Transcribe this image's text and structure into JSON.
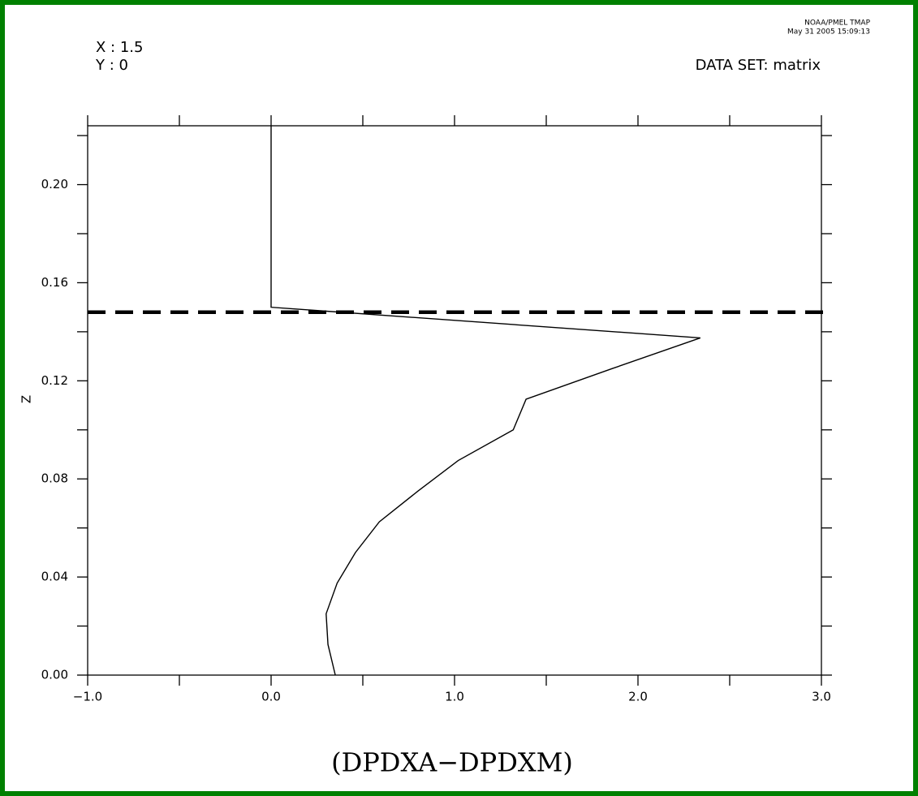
{
  "chart_data": {
    "type": "line",
    "orientation": "vertical-profile",
    "annotations": [
      "X : 1.5",
      "Y : 0"
    ],
    "credit": [
      "NOAA/PMEL TMAP",
      "May 31 2005 15:09:13"
    ],
    "dataset_label": "DATA SET: matrix",
    "xlabel": "(DPDXA−DPDXM)",
    "ylabel": "Z",
    "x": [
      0.0,
      0.0,
      2.34,
      1.86,
      1.39,
      1.32,
      1.02,
      0.8,
      0.59,
      0.46,
      0.36,
      0.3,
      0.31,
      0.35
    ],
    "y": [
      0.224,
      0.15,
      0.1375,
      0.125,
      0.1125,
      0.1,
      0.0875,
      0.075,
      0.0625,
      0.05,
      0.0375,
      0.025,
      0.0125,
      0.0
    ],
    "color": "#000000",
    "hline": 0.148,
    "hline_color": "#000000",
    "xlim": [
      -1.0,
      3.0
    ],
    "ylim": [
      0.0,
      0.224
    ],
    "xticks": [
      {
        "value": -1.0,
        "label": "−1.0"
      },
      {
        "value": 0.0,
        "label": "0.0"
      },
      {
        "value": 1.0,
        "label": "1.0"
      },
      {
        "value": 2.0,
        "label": "2.0"
      },
      {
        "value": 3.0,
        "label": "3.0"
      }
    ],
    "xminor": [
      -0.5,
      0.5,
      1.5,
      2.5
    ],
    "yticks": [
      {
        "value": 0.0,
        "label": "0.00"
      },
      {
        "value": 0.04,
        "label": "0.04"
      },
      {
        "value": 0.08,
        "label": "0.08"
      },
      {
        "value": 0.12,
        "label": "0.12"
      },
      {
        "value": 0.16,
        "label": "0.16"
      },
      {
        "value": 0.2,
        "label": "0.20"
      }
    ],
    "yminor": [
      0.02,
      0.06,
      0.1,
      0.14,
      0.18,
      0.22
    ],
    "frame_color": "#008000"
  }
}
